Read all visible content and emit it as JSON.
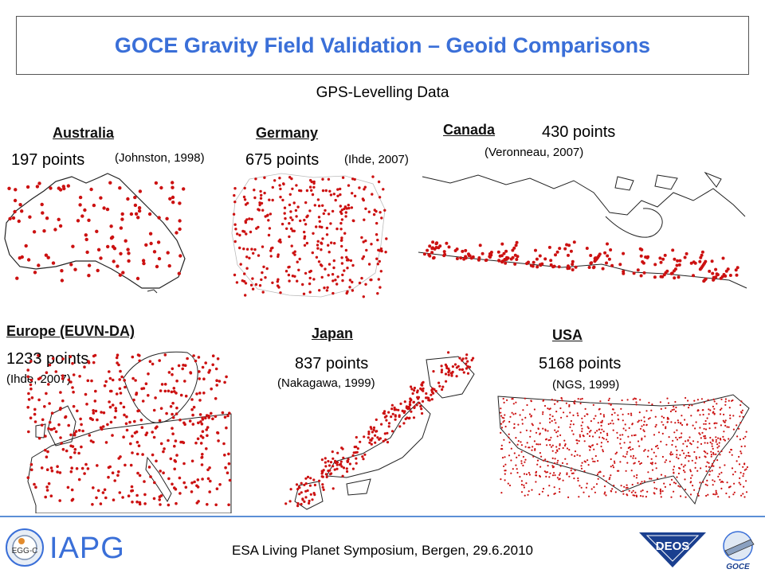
{
  "header": {
    "title": "GOCE Gravity Field Validation – Geoid Comparisons"
  },
  "subtitle": "GPS-Levelling Data",
  "regions": {
    "australia": {
      "name": "Australia",
      "points": "197 points",
      "source": "(Johnston, 1998)"
    },
    "germany": {
      "name": "Germany",
      "points": "675 points",
      "source": "(Ihde, 2007)"
    },
    "canada": {
      "name": "Canada",
      "points": "430 points",
      "source": "(Veronneau, 2007)"
    },
    "europe": {
      "name": "Europe (EUVN-DA)",
      "points": "1233 points",
      "source": "(Ihde, 2007)"
    },
    "japan": {
      "name": "Japan",
      "points": "837 points",
      "source": "(Nakagawa, 1999)"
    },
    "usa": {
      "name": "USA",
      "points": "5168 points",
      "source": "(NGS, 1999)"
    }
  },
  "colors": {
    "title": "#3a6fd8",
    "points": "#cc1111",
    "outline": "#222222",
    "footer_rule": "#5b8fd6"
  },
  "footer": {
    "event": "ESA Living Planet Symposium, Bergen, 29.6.2010",
    "iapg_logo": "IAPG",
    "egg_logo": "EGG-C",
    "deos_logo": "DEOS",
    "goce_logo": "GOCE"
  }
}
